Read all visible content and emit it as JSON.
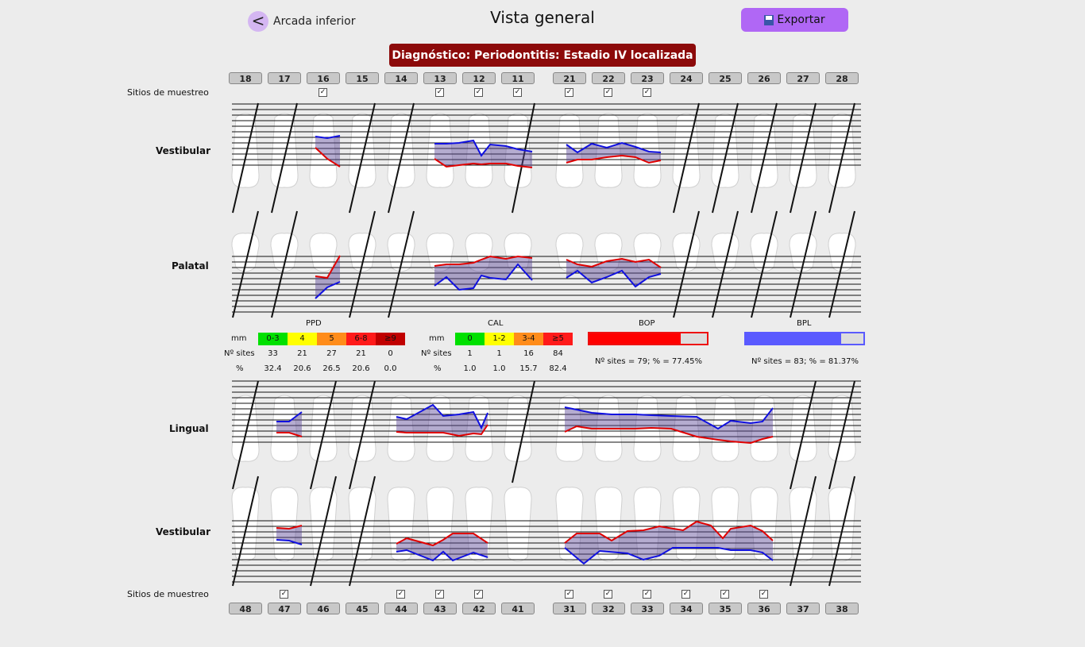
{
  "header": {
    "back_label": "Arcada inferior",
    "back_icon": "chevron-left-icon",
    "title": "Vista general",
    "export_label": "Exportar",
    "export_icon": "floppy-disk-icon"
  },
  "diagnosis": "Diagnóstico: Periodontitis: Estadio IV  localizada",
  "upper_teeth": [
    "18",
    "17",
    "16",
    "15",
    "14",
    "13",
    "12",
    "11",
    "21",
    "22",
    "23",
    "24",
    "25",
    "26",
    "27",
    "28"
  ],
  "lower_teeth": [
    "48",
    "47",
    "46",
    "45",
    "44",
    "43",
    "42",
    "41",
    "31",
    "32",
    "33",
    "34",
    "35",
    "36",
    "37",
    "38"
  ],
  "upper_checked": [
    "16",
    "13",
    "12",
    "11",
    "21",
    "22",
    "23"
  ],
  "lower_checked": [
    "47",
    "44",
    "43",
    "42",
    "31",
    "32",
    "33",
    "34",
    "35",
    "36"
  ],
  "sample_sites_label": "Sitios de muestreo",
  "sections": {
    "upper_vestibular": "Vestibular",
    "upper_palatal": "Palatal",
    "lower_lingual": "Lingual",
    "lower_vestibular": "Vestibular"
  },
  "ppd": {
    "title": "PPD",
    "mm_label": "mm",
    "sites_label": "Nº sites",
    "pct_label": "%",
    "ranges": [
      "0-3",
      "4",
      "5",
      "6-8",
      "≥9"
    ],
    "colors": [
      "#00e000",
      "#ffff00",
      "#ff8c1a",
      "#ff1a1a",
      "#c00000"
    ],
    "sites": [
      "33",
      "21",
      "27",
      "21",
      "0"
    ],
    "pct": [
      "32.4",
      "20.6",
      "26.5",
      "20.6",
      "0.0"
    ]
  },
  "cal": {
    "title": "CAL",
    "mm_label": "mm",
    "sites_label": "Nº sites",
    "pct_label": "%",
    "ranges": [
      "0",
      "1-2",
      "3-4",
      "≥5"
    ],
    "colors": [
      "#00e000",
      "#ffff00",
      "#ff8c1a",
      "#ff1a1a"
    ],
    "sites": [
      "1",
      "1",
      "16",
      "84"
    ],
    "pct": [
      "1.0",
      "1.0",
      "15.7",
      "82.4"
    ]
  },
  "bop": {
    "title": "BOP",
    "summary": "Nº sites = 79; % = 77.45%",
    "fraction": 0.7745,
    "color": "#ff0000"
  },
  "bpl": {
    "title": "BPL",
    "summary": "Nº sites = 83; % = 81.37%",
    "fraction": 0.8137,
    "color": "#5a5aff"
  }
}
